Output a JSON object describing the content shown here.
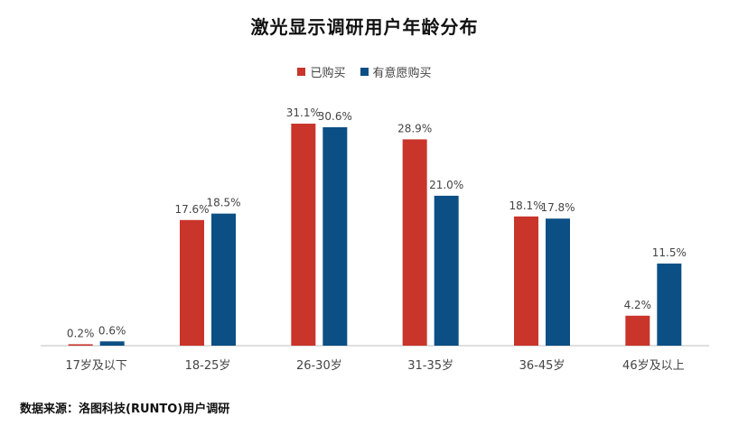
{
  "chart_data": {
    "type": "bar",
    "title": "激光显示调研用户年龄分布",
    "categories": [
      "17岁及以下",
      "18-25岁",
      "26-30岁",
      "31-35岁",
      "36-45岁",
      "46岁及以上"
    ],
    "series": [
      {
        "name": "已购买",
        "values": [
          0.2,
          17.6,
          31.1,
          28.9,
          18.1,
          4.2
        ],
        "labels": [
          "0.2%",
          "17.6%",
          "31.1%",
          "28.9%",
          "18.1%",
          "4.2%"
        ],
        "color": "#c9352b"
      },
      {
        "name": "有意愿购买",
        "values": [
          0.6,
          18.5,
          30.6,
          21.0,
          17.8,
          11.5
        ],
        "labels": [
          "0.6%",
          "18.5%",
          "30.6%",
          "21.0%",
          "17.8%",
          "11.5%"
        ],
        "color": "#0b4f85"
      }
    ],
    "ylim": [
      0,
      31.1
    ],
    "legend_position": "top-center",
    "grid": false,
    "source": "数据来源：洛图科技(RUNTO)用户调研"
  }
}
